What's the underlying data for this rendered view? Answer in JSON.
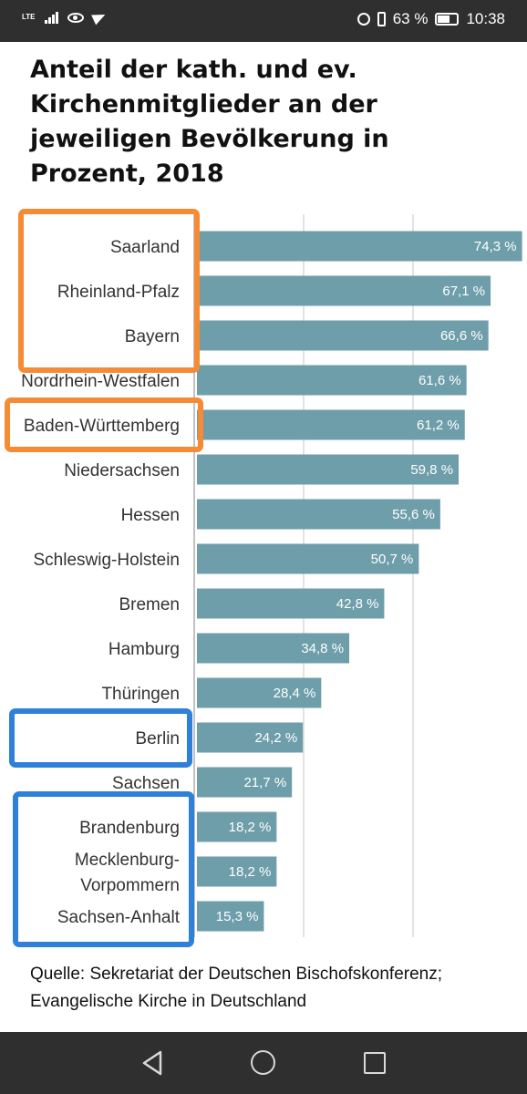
{
  "status_bar": {
    "network": "LTE",
    "battery_text": "63 %",
    "battery_level": 0.63,
    "time": "10:38",
    "icons": [
      "signal-icon",
      "eye-icon",
      "telegram-icon",
      "alarm-icon",
      "vibrate-icon",
      "battery-icon"
    ]
  },
  "chart_data": {
    "type": "bar",
    "orientation": "horizontal",
    "title": "Anteil der kath. und ev. Kirchenmitglieder an der jeweiligen Bevölkerung in Prozent, 2018",
    "categories": [
      "Saarland",
      "Rheinland-Pfalz",
      "Bayern",
      "Nordrhein-Westfalen",
      "Baden-Württemberg",
      "Niedersachsen",
      "Hessen",
      "Schleswig-Holstein",
      "Bremen",
      "Hamburg",
      "Thüringen",
      "Berlin",
      "Sachsen",
      "Brandenburg",
      "Mecklenburg-Vorpommern",
      "Sachsen-Anhalt"
    ],
    "category_lines": [
      [
        "Saarland"
      ],
      [
        "Rheinland-Pfalz"
      ],
      [
        "Bayern"
      ],
      [
        "Nordrhein-Westfalen"
      ],
      [
        "Baden-Württemberg"
      ],
      [
        "Niedersachsen"
      ],
      [
        "Hessen"
      ],
      [
        "Schleswig-Holstein"
      ],
      [
        "Bremen"
      ],
      [
        "Hamburg"
      ],
      [
        "Thüringen"
      ],
      [
        "Berlin"
      ],
      [
        "Sachsen"
      ],
      [
        "Brandenburg"
      ],
      [
        "Mecklenburg-",
        "Vorpommern"
      ],
      [
        "Sachsen-Anhalt"
      ]
    ],
    "values": [
      74.3,
      67.1,
      66.6,
      61.6,
      61.2,
      59.8,
      55.6,
      50.7,
      42.8,
      34.8,
      28.4,
      24.2,
      21.7,
      18.2,
      18.2,
      15.3
    ],
    "value_labels": [
      "74,3 %",
      "67,1 %",
      "66,6 %",
      "61,6 %",
      "61,2 %",
      "59,8 %",
      "55,6 %",
      "50,7 %",
      "42,8 %",
      "34,8 %",
      "28,4 %",
      "24,2 %",
      "21,7 %",
      "18,2 %",
      "18,2 %",
      "15,3 %"
    ],
    "xlim": [
      0,
      75
    ],
    "gridlines": [
      0,
      25,
      50
    ],
    "bar_color": "#6e9eaa",
    "highlight_groups": [
      {
        "color": "#f58b35",
        "categories": [
          "Saarland",
          "Rheinland-Pfalz",
          "Bayern"
        ]
      },
      {
        "color": "#f58b35",
        "categories": [
          "Baden-Württemberg"
        ]
      },
      {
        "color": "#2f80d9",
        "categories": [
          "Berlin"
        ]
      },
      {
        "color": "#2f80d9",
        "categories": [
          "Brandenburg",
          "Mecklenburg-Vorpommern",
          "Sachsen-Anhalt"
        ]
      }
    ]
  },
  "source_text": "Quelle: Sekretariat der Deutschen Bischofskonferenz; Evangelische Kirche in Deutschland",
  "nav_bar": {
    "icons": [
      "back-icon",
      "home-icon",
      "recent-apps-icon"
    ]
  }
}
